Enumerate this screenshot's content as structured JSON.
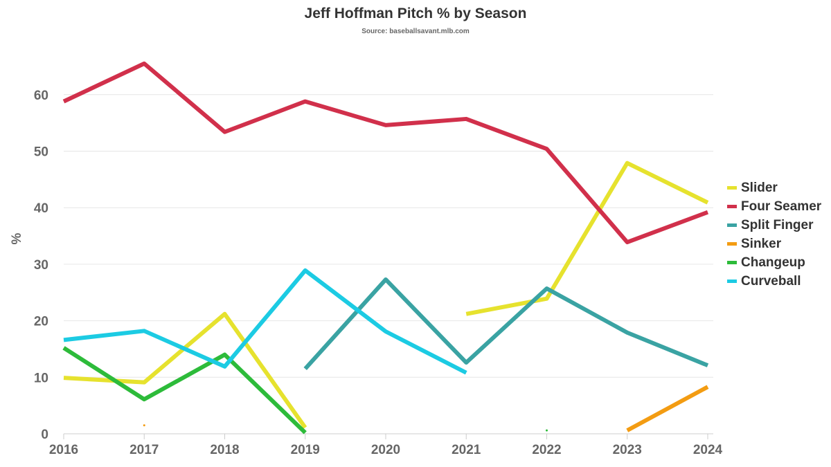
{
  "chart_data": {
    "type": "line",
    "title": "Jeff Hoffman Pitch % by Season",
    "subtitle": "Source: baseballsavant.mlb.com",
    "xlabel": "",
    "ylabel": "%",
    "x": [
      2016,
      2017,
      2018,
      2019,
      2020,
      2021,
      2022,
      2023,
      2024
    ],
    "x_ticks": [
      "2016",
      "2017",
      "2018",
      "2019",
      "2020",
      "2021",
      "2022",
      "2023",
      "2024"
    ],
    "y_ticks": [
      "0",
      "10",
      "20",
      "30",
      "40",
      "50",
      "60"
    ],
    "ylim": [
      0,
      65
    ],
    "grid": true,
    "legend_position": "right",
    "series": [
      {
        "name": "Slider",
        "color": "#e6e22e",
        "values": [
          9.9,
          9.1,
          21.2,
          1.1,
          null,
          21.2,
          23.9,
          47.9,
          40.9
        ]
      },
      {
        "name": "Four Seamer",
        "color": "#d1304b",
        "values": [
          58.8,
          65.5,
          53.4,
          58.8,
          54.6,
          55.7,
          50.4,
          33.9,
          39.2
        ]
      },
      {
        "name": "Split Finger",
        "color": "#3aa3a3",
        "values": [
          null,
          null,
          null,
          11.5,
          27.3,
          12.6,
          25.7,
          17.9,
          12.1
        ]
      },
      {
        "name": "Sinker",
        "color": "#f39c12",
        "values": [
          null,
          1.5,
          null,
          null,
          null,
          null,
          null,
          0.6,
          8.3
        ]
      },
      {
        "name": "Changeup",
        "color": "#2dbb3a",
        "values": [
          15.2,
          6.1,
          14.0,
          0.2,
          null,
          null,
          0.6,
          null,
          null
        ]
      },
      {
        "name": "Curveball",
        "color": "#1ccbe3",
        "values": [
          16.6,
          18.2,
          11.9,
          28.9,
          18.1,
          10.8,
          null,
          null,
          null
        ]
      }
    ]
  }
}
